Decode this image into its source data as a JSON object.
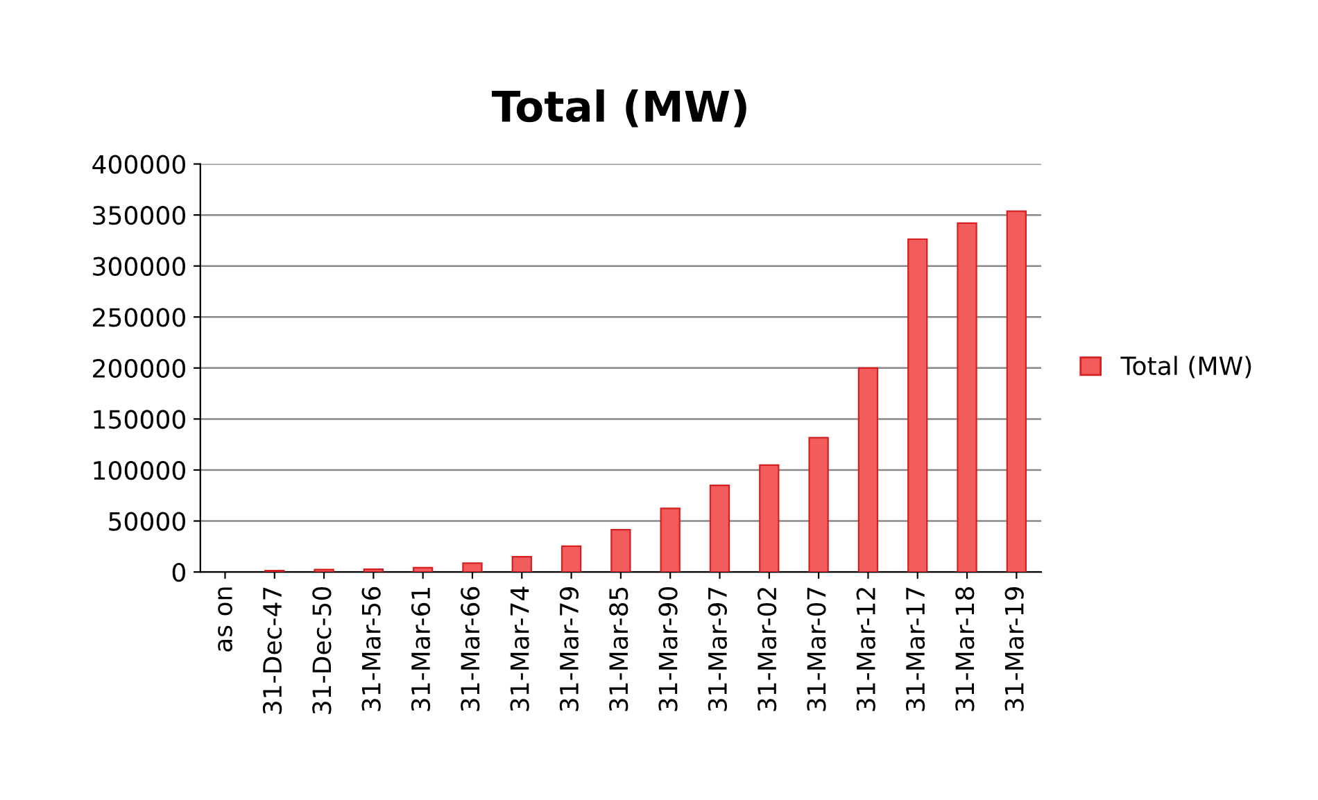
{
  "chart_data": {
    "type": "bar",
    "title": "Total (MW)",
    "categories": [
      "as on",
      "31-Dec-47",
      "31-Dec-50",
      "31-Mar-56",
      "31-Mar-61",
      "31-Mar-66",
      "31-Mar-74",
      "31-Mar-79",
      "31-Mar-85",
      "31-Mar-90",
      "31-Mar-97",
      "31-Mar-02",
      "31-Mar-07",
      "31-Mar-12",
      "31-Mar-17",
      "31-Mar-18",
      "31-Mar-19"
    ],
    "series": [
      {
        "name": "Total (MW)",
        "color": "#f25c5c",
        "values": [
          null,
          1400,
          2300,
          2700,
          4300,
          8600,
          15000,
          25300,
          41400,
          62400,
          85000,
          104800,
          131700,
          200000,
          326300,
          342000,
          353800
        ]
      }
    ],
    "ylim": [
      0,
      400000
    ],
    "yticks": [
      0,
      50000,
      100000,
      150000,
      200000,
      250000,
      300000,
      350000,
      400000
    ],
    "grid": "y",
    "legend": "right"
  }
}
